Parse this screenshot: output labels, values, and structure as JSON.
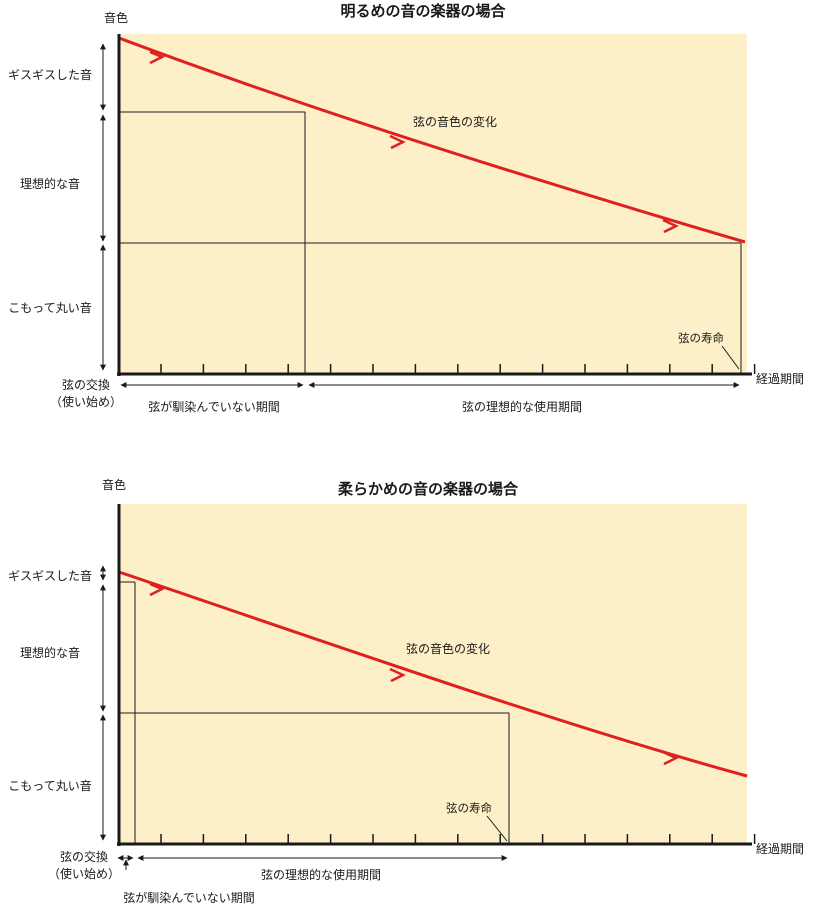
{
  "panels": [
    {
      "title": "明るめの音の楽器の場合",
      "y_axis_label": "音色",
      "x_axis_label": "経過期間",
      "tone_bands": [
        "ギスギスした音",
        "理想的な音",
        "こもって丸い音"
      ],
      "curve_label": "弦の音色の変化",
      "life_label": "弦の寿命",
      "replace_label_1": "弦の交換",
      "replace_label_2": "（使い始め）",
      "break_in_label": "弦が馴染んでいない期間",
      "ideal_label": "弦の理想的な使用期間"
    },
    {
      "title": "柔らかめの音の楽器の場合",
      "y_axis_label": "音色",
      "x_axis_label": "経過期間",
      "tone_bands": [
        "ギスギスした音",
        "理想的な音",
        "こもって丸い音"
      ],
      "curve_label": "弦の音色の変化",
      "life_label": "弦の寿命",
      "replace_label_1": "弦の交換",
      "replace_label_2": "（使い始め）",
      "break_in_label": "弦が馴染んでいない期間",
      "ideal_label": "弦の理想的な使用期間"
    }
  ],
  "colors": {
    "plot_bg": "#fdf0c8",
    "curve": "#e02020",
    "ink": "#1a1a1a"
  }
}
